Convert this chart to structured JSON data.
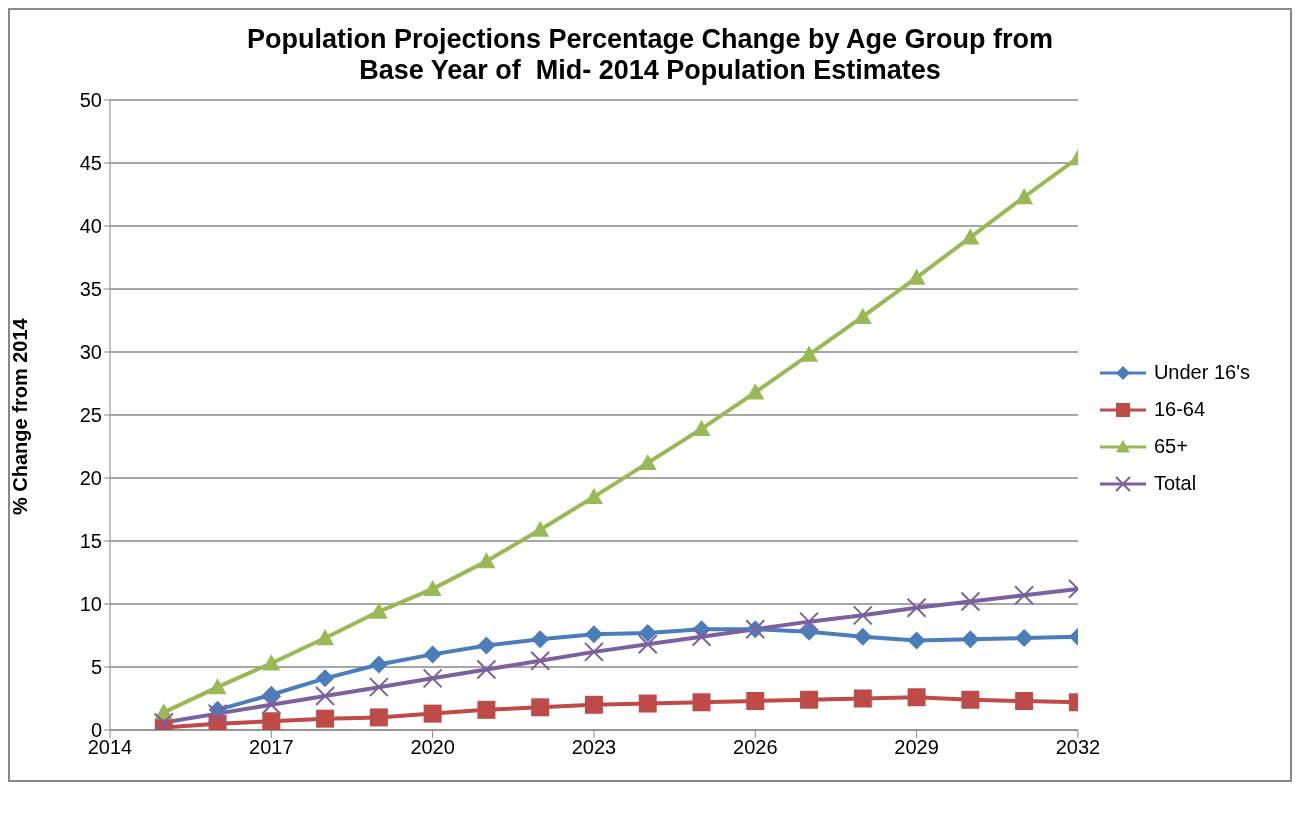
{
  "chart_data": {
    "type": "line",
    "title": "Population Projections Percentage Change by Age Group from Base Year of  Mid- 2014 Population Estimates",
    "ylabel": "% Change from 2014",
    "x": [
      2015,
      2016,
      2017,
      2018,
      2019,
      2020,
      2021,
      2022,
      2023,
      2024,
      2025,
      2026,
      2027,
      2028,
      2029,
      2030,
      2031,
      2032
    ],
    "xlim": [
      2014,
      2032
    ],
    "xticks": [
      2014,
      2017,
      2020,
      2023,
      2026,
      2029,
      2032
    ],
    "ylim": [
      0,
      50
    ],
    "yticks": [
      0,
      5,
      10,
      15,
      20,
      25,
      30,
      35,
      40,
      45,
      50
    ],
    "grid": "y",
    "legend": "right",
    "series": [
      {
        "name": "Under 16's",
        "color": "#4a7ebb",
        "marker": "diamond",
        "values": [
          null,
          1.6,
          2.8,
          4.1,
          5.2,
          6.0,
          6.7,
          7.2,
          7.6,
          7.7,
          8.0,
          8.0,
          7.8,
          7.4,
          7.1,
          7.2,
          7.3,
          7.4
        ]
      },
      {
        "name": "16-64",
        "color": "#be4b48",
        "marker": "square",
        "values": [
          0.2,
          0.5,
          0.7,
          0.9,
          1.0,
          1.3,
          1.6,
          1.8,
          2.0,
          2.1,
          2.2,
          2.3,
          2.4,
          2.5,
          2.6,
          2.4,
          2.3,
          2.2
        ]
      },
      {
        "name": "65+",
        "color": "#98b954",
        "marker": "triangle",
        "values": [
          1.4,
          3.4,
          5.3,
          7.3,
          9.4,
          11.2,
          13.4,
          15.9,
          18.5,
          21.2,
          23.9,
          26.8,
          29.8,
          32.8,
          35.9,
          39.1,
          42.3,
          45.4
        ]
      },
      {
        "name": "Total",
        "color": "#7d60a0",
        "marker": "cross",
        "values": [
          0.6,
          1.3,
          2.0,
          2.7,
          3.4,
          4.1,
          4.8,
          5.5,
          6.2,
          6.8,
          7.4,
          8.0,
          8.6,
          9.1,
          9.7,
          10.2,
          10.7,
          11.2
        ]
      }
    ]
  }
}
